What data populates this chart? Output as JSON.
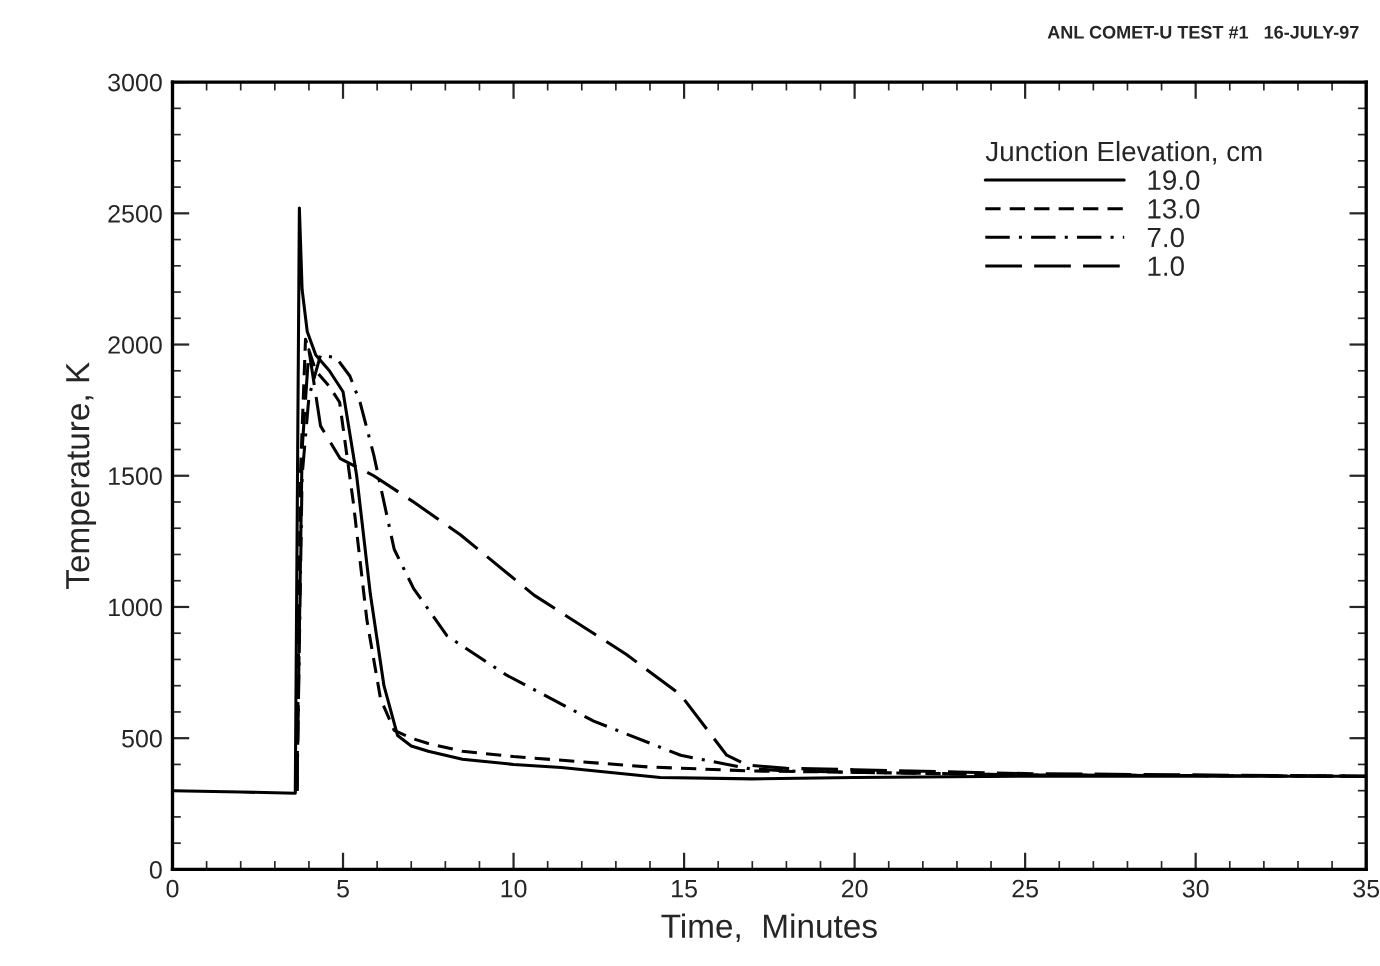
{
  "chart_data": {
    "type": "line",
    "xlabel": "Time,  Minutes",
    "ylabel": "Temperature, K",
    "legend_title": "Junction Elevation, cm",
    "legend": "top right",
    "grid": false,
    "annotations": [
      "ANL COMET-U TEST #1   16-JULY-97"
    ],
    "xlim": [
      0,
      35
    ],
    "xticks": [
      0,
      5,
      10,
      15,
      20,
      25,
      30,
      35
    ],
    "ylim": [
      0,
      3000
    ],
    "yticks": [
      0,
      500,
      1000,
      1500,
      2000,
      2500,
      3000
    ],
    "series": [
      {
        "name": "19.0",
        "color": "#000000",
        "line_style": "solid",
        "x": [
          0,
          2,
          3.6,
          3.72,
          3.8,
          3.95,
          4.2,
          4.6,
          5.0,
          5.4,
          5.8,
          6.2,
          6.6,
          7.0,
          7.5,
          8.5,
          10,
          11.4,
          14.3,
          17,
          20,
          25,
          30,
          35
        ],
        "values": [
          300,
          295,
          290,
          2520,
          2210,
          2050,
          1960,
          1900,
          1820,
          1500,
          1050,
          700,
          510,
          470,
          450,
          420,
          400,
          388,
          350,
          345,
          350,
          355,
          355,
          355
        ]
      },
      {
        "name": "13.0",
        "color": "#000000",
        "line_style": "dashed",
        "x": [
          3.65,
          3.75,
          3.9,
          4.2,
          4.6,
          4.9,
          5.3,
          5.7,
          6.1,
          6.5,
          7.0,
          7.5,
          8.5,
          10,
          12,
          14,
          17,
          20,
          25,
          35
        ],
        "values": [
          300,
          1500,
          2020,
          1900,
          1840,
          1780,
          1400,
          950,
          650,
          530,
          500,
          480,
          450,
          430,
          410,
          390,
          375,
          370,
          360,
          355
        ]
      },
      {
        "name": "7.0",
        "color": "#000000",
        "line_style": "dash-dot",
        "x": [
          3.65,
          3.8,
          4.0,
          4.34,
          4.8,
          5.2,
          5.5,
          5.9,
          6.5,
          7.07,
          8.05,
          9.8,
          12.35,
          14.9,
          16.84,
          18,
          20,
          25,
          35
        ],
        "values": [
          300,
          1500,
          1800,
          1960,
          1950,
          1880,
          1780,
          1580,
          1220,
          1070,
          890,
          740,
          565,
          435,
          385,
          375,
          370,
          360,
          355
        ]
      },
      {
        "name": "1.0",
        "color": "#000000",
        "line_style": "long-dash",
        "x": [
          3.65,
          3.8,
          4.0,
          4.34,
          4.92,
          5.9,
          7.07,
          8.44,
          10.6,
          13.3,
          14.9,
          16.25,
          16.84,
          18,
          20,
          25,
          35
        ],
        "values": [
          300,
          1600,
          1980,
          1690,
          1565,
          1500,
          1400,
          1275,
          1045,
          820,
          665,
          435,
          398,
          385,
          380,
          365,
          355
        ]
      }
    ]
  }
}
